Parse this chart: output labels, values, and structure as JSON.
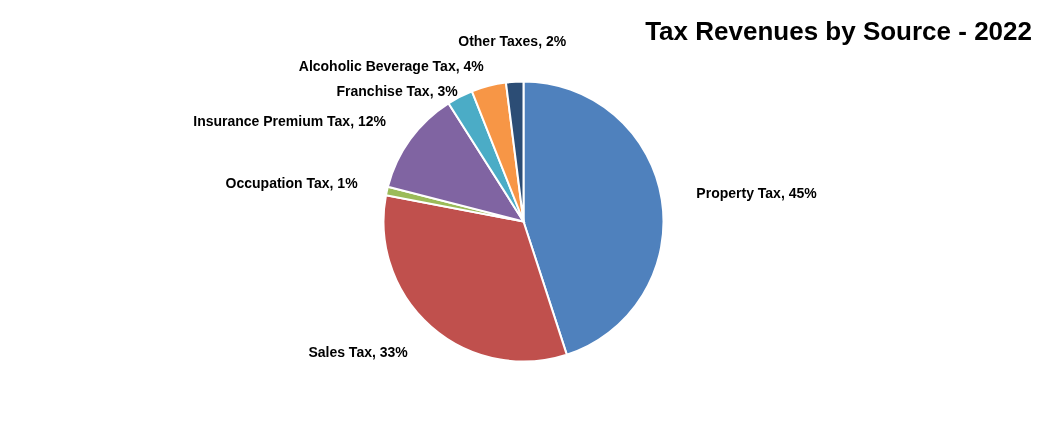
{
  "chart_data": {
    "type": "pie",
    "title": "Tax Revenues by Source - 2022",
    "categories": [
      "Property Tax",
      "Sales Tax",
      "Occupation Tax",
      "Insurance Premium Tax",
      "Franchise Tax",
      "Alcoholic Beverage Tax",
      "Other Taxes"
    ],
    "values": [
      45,
      33,
      1,
      12,
      3,
      4,
      2
    ],
    "value_labels": [
      "45%",
      "33%",
      "1%",
      "12%",
      "3%",
      "4%",
      "2%"
    ],
    "colors": [
      "#4f81bd",
      "#c0504d",
      "#9bbb59",
      "#8064a2",
      "#4bacc6",
      "#f79646",
      "#2c4d75"
    ],
    "legend": false
  }
}
